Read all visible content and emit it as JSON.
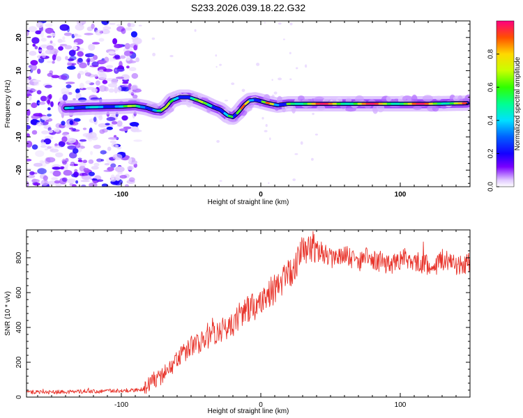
{
  "title": "S233.2026.039.18.22.G32",
  "colors": {
    "snr_line": "#e8332a",
    "axis": "#000000",
    "background": "#ffffff"
  },
  "chart_data": [
    {
      "type": "heatmap",
      "name": "spectrogram",
      "xlabel": "Height of straight line (km)",
      "ylabel": "Frequency (Hz)",
      "xlim": [
        -168,
        150
      ],
      "ylim": [
        -25,
        25
      ],
      "xticks": [
        -100,
        0,
        100
      ],
      "yticks": [
        -20,
        -10,
        0,
        10,
        20
      ],
      "noise_region_x": [
        -168,
        -88
      ],
      "signal_start_x": -140,
      "signal_track": [
        {
          "x": -140,
          "f": -1.3
        },
        {
          "x": -120,
          "f": -1.0
        },
        {
          "x": -100,
          "f": -0.8
        },
        {
          "x": -90,
          "f": -0.6
        },
        {
          "x": -82,
          "f": -1.2
        },
        {
          "x": -76,
          "f": -2.0
        },
        {
          "x": -72,
          "f": -2.2
        },
        {
          "x": -68,
          "f": -1.0
        },
        {
          "x": -64,
          "f": 1.0
        },
        {
          "x": -58,
          "f": 2.0
        },
        {
          "x": -52,
          "f": 2.0
        },
        {
          "x": -46,
          "f": 1.2
        },
        {
          "x": -40,
          "f": 0.2
        },
        {
          "x": -34,
          "f": -1.0
        },
        {
          "x": -29,
          "f": -1.8
        },
        {
          "x": -24,
          "f": -3.5
        },
        {
          "x": -20,
          "f": -4.0
        },
        {
          "x": -16,
          "f": -2.5
        },
        {
          "x": -12,
          "f": -0.4
        },
        {
          "x": -8,
          "f": 1.0
        },
        {
          "x": -4,
          "f": 1.2
        },
        {
          "x": 0,
          "f": 0.8
        },
        {
          "x": 5,
          "f": 0.2
        },
        {
          "x": 12,
          "f": -0.4
        },
        {
          "x": 20,
          "f": 0.0
        },
        {
          "x": 40,
          "f": 0.0
        },
        {
          "x": 80,
          "f": 0.0
        },
        {
          "x": 120,
          "f": 0.0
        },
        {
          "x": 148,
          "f": 0.2
        }
      ],
      "colorbar": {
        "label": "Normalized spectral amplitude",
        "range": [
          0,
          1
        ],
        "ticks": [
          0.0,
          0.2,
          0.4,
          0.6,
          0.8
        ],
        "tick_labels": [
          "0.0",
          "0.2",
          "0.4",
          "0.6",
          "0.8"
        ],
        "stops": [
          {
            "v": 0.0,
            "c": "#ffffff"
          },
          {
            "v": 0.04,
            "c": "#e0c8ff"
          },
          {
            "v": 0.12,
            "c": "#7a00ff"
          },
          {
            "v": 0.2,
            "c": "#1400ff"
          },
          {
            "v": 0.3,
            "c": "#0060ff"
          },
          {
            "v": 0.4,
            "c": "#00e0ff"
          },
          {
            "v": 0.5,
            "c": "#00ff90"
          },
          {
            "v": 0.6,
            "c": "#30ff00"
          },
          {
            "v": 0.7,
            "c": "#c8ff00"
          },
          {
            "v": 0.8,
            "c": "#ffd800"
          },
          {
            "v": 0.9,
            "c": "#ff5000"
          },
          {
            "v": 1.0,
            "c": "#ff0080"
          }
        ]
      }
    },
    {
      "type": "line",
      "name": "snr",
      "xlabel": "Height of straight line (km)",
      "ylabel": "SNR (10 * v/v)",
      "xlim": [
        -168,
        150
      ],
      "ylim": [
        0,
        960
      ],
      "xticks": [
        -100,
        0,
        100
      ],
      "yticks": [
        0,
        200,
        400,
        600,
        800
      ],
      "series": [
        {
          "name": "SNR",
          "x": [
            -168,
            -150,
            -130,
            -110,
            -95,
            -86,
            -80,
            -75,
            -70,
            -65,
            -60,
            -55,
            -50,
            -45,
            -40,
            -35,
            -30,
            -25,
            -20,
            -15,
            -10,
            -5,
            0,
            5,
            10,
            15,
            20,
            25,
            30,
            35,
            40,
            45,
            50,
            55,
            60,
            65,
            70,
            75,
            80,
            85,
            90,
            95,
            100,
            105,
            110,
            115,
            120,
            125,
            130,
            135,
            140,
            145,
            150
          ],
          "y": [
            30,
            28,
            32,
            35,
            38,
            45,
            70,
            100,
            130,
            170,
            210,
            250,
            290,
            310,
            330,
            360,
            380,
            400,
            420,
            470,
            500,
            520,
            540,
            590,
            620,
            660,
            700,
            760,
            830,
            870,
            840,
            830,
            800,
            790,
            820,
            800,
            780,
            800,
            790,
            780,
            770,
            760,
            790,
            800,
            780,
            770,
            760,
            750,
            790,
            780,
            760,
            750,
            780
          ]
        }
      ]
    }
  ]
}
